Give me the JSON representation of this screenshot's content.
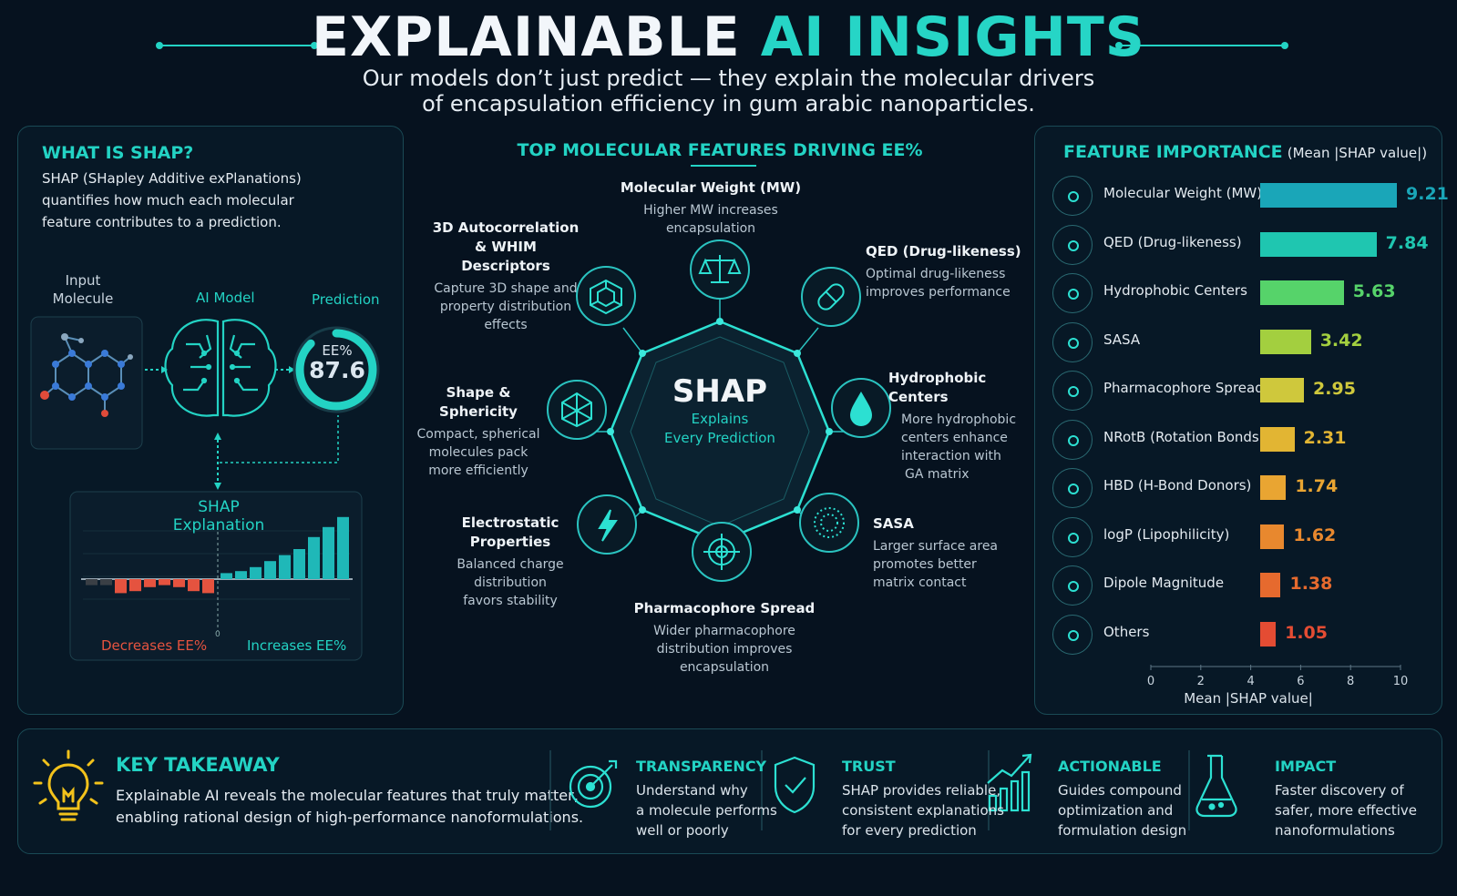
{
  "header": {
    "title_part1": "EXPLAINABLE",
    "title_part2": "AI INSIGHTS",
    "subtitle_line1": "Our models don’t just predict — they explain the molecular drivers",
    "subtitle_line2": "of encapsulation efficiency in gum arabic nanoparticles."
  },
  "left_panel": {
    "heading": "WHAT IS SHAP?",
    "body_line1": "SHAP (SHapley Additive exPlanations)",
    "body_line2": "quantifies how much each molecular",
    "body_line3": "feature contributes to a prediction.",
    "input_label_line1": "Input",
    "input_label_line2": "Molecule",
    "model_label": "AI Model",
    "prediction_label": "Prediction",
    "gauge_label": "EE%",
    "gauge_value": "87.6",
    "gauge_fraction": 0.876,
    "explain_title": "SHAP Explanation",
    "decreases_label": "Decreases EE%",
    "increases_label": "Increases EE%",
    "zero_label": "0"
  },
  "center_panel": {
    "heading": "TOP MOLECULAR FEATURES DRIVING EE%",
    "hub_title": "SHAP",
    "hub_sub1": "Explains",
    "hub_sub2": "Every Prediction",
    "features": [
      {
        "title": "Molecular Weight (MW)",
        "desc1": "Higher MW increases",
        "desc2": "encapsulation",
        "icon": "scale-icon"
      },
      {
        "title": "QED (Drug-likeness)",
        "desc1": "Optimal drug-likeness",
        "desc2": "improves performance",
        "icon": "pill-icon"
      },
      {
        "title": "Hydrophobic Centers",
        "desc1": "More hydrophobic",
        "desc2": "centers enhance",
        "desc3": "interaction with",
        "desc4": "GA matrix",
        "icon": "droplet-icon"
      },
      {
        "title": "SASA",
        "desc1": "Larger surface area",
        "desc2": "promotes better",
        "desc3": "matrix contact",
        "icon": "dotted-sphere-icon"
      },
      {
        "title": "Pharmacophore Spread",
        "desc1": "Wider pharmacophore",
        "desc2": "distribution improves",
        "desc3": "encapsulation",
        "icon": "target-icon"
      },
      {
        "title1": "Electrostatic",
        "title2": "Properties",
        "desc1": "Balanced charge",
        "desc2": "distribution",
        "desc3": "favors stability",
        "icon": "lightning-icon"
      },
      {
        "title": "Shape & Sphericity",
        "desc1": "Compact, spherical",
        "desc2": "molecules pack",
        "desc3": "more efficiently",
        "icon": "polyhedron-icon"
      },
      {
        "title1": "3D Autocorrelation",
        "title2": "& WHIM Descriptors",
        "desc1": "Capture 3D shape and",
        "desc2": "property distribution",
        "desc3": "effects",
        "icon": "cube-icon"
      }
    ]
  },
  "right_panel": {
    "heading": "FEATURE IMPORTANCE",
    "heading_sub": "(Mean |SHAP value|)",
    "xlabel": "Mean |SHAP value|"
  },
  "chart_data": [
    {
      "type": "bar",
      "orientation": "horizontal",
      "title": "FEATURE IMPORTANCE (Mean |SHAP value|)",
      "xlabel": "Mean |SHAP value|",
      "xlim": [
        0,
        10
      ],
      "xticks": [
        0,
        2,
        4,
        6,
        8,
        10
      ],
      "categories": [
        "Molecular Weight (MW)",
        "QED (Drug-likeness)",
        "Hydrophobic Centers",
        "SASA",
        "Pharmacophore Spread",
        "NRotB (Rotation Bonds)",
        "HBD (H-Bond Donors)",
        "logP (Lipophilicity)",
        "Dipole Magnitude",
        "Others"
      ],
      "values": [
        9.21,
        7.84,
        5.63,
        3.42,
        2.95,
        2.31,
        1.74,
        1.62,
        1.38,
        1.05
      ],
      "value_labels": [
        "9.21",
        "7.84",
        "5.63",
        "3.42",
        "2.95",
        "2.31",
        "1.74",
        "1.62",
        "1.38",
        "1.05"
      ],
      "colors": [
        "#1aa6b8",
        "#1fc6b0",
        "#56d36a",
        "#a3cf3f",
        "#cfc83c",
        "#e2b533",
        "#e9a532",
        "#e8882e",
        "#e66a2e",
        "#e44c33"
      ],
      "icons": [
        "scale-icon",
        "pill-icon",
        "droplet-icon",
        "dotted-sphere-icon",
        "target-icon",
        "wave-icon",
        "h-bond-icon",
        "hexagon-icon",
        "dipole-icon",
        "dots-icon"
      ],
      "grid": false
    },
    {
      "type": "bar",
      "title": "SHAP Explanation",
      "series": [
        {
          "name": "Decreases EE%",
          "values": [
            -0.3,
            -0.3,
            -0.7,
            -0.6,
            -0.4,
            -0.3,
            -0.4,
            -0.6,
            -0.7
          ]
        },
        {
          "name": "Increases EE%",
          "values": [
            0.3,
            0.4,
            0.6,
            0.9,
            1.2,
            1.5,
            2.1,
            2.6,
            3.1
          ]
        }
      ],
      "colors": {
        "negative": "#e5533f",
        "positive": "#1fb8b8"
      },
      "grid": true
    }
  ],
  "takeaway": {
    "heading": "KEY TAKEAWAY",
    "line1": "Explainable AI reveals the molecular features that truly matter,",
    "line2": "enabling rational design of high-performance nanoformulations.",
    "items": [
      {
        "title": "TRANSPARENCY",
        "l1": "Understand why",
        "l2": "a molecule performs",
        "l3": "well or poorly",
        "icon": "target-arrow-icon"
      },
      {
        "title": "TRUST",
        "l1": "SHAP provides reliable,",
        "l2": "consistent explanations",
        "l3": "for every prediction",
        "icon": "shield-check-icon"
      },
      {
        "title": "ACTIONABLE",
        "l1": "Guides compound",
        "l2": "optimization and",
        "l3": "formulation design",
        "icon": "growth-chart-icon"
      },
      {
        "title": "IMPACT",
        "l1": "Faster discovery of",
        "l2": "safer, more effective",
        "l3": "nanoformulations",
        "icon": "flask-icon"
      }
    ]
  },
  "colors": {
    "background": "#06121f",
    "accent": "#23d3c4",
    "negative": "#e5533f",
    "lightbulb": "#f2c21b"
  }
}
